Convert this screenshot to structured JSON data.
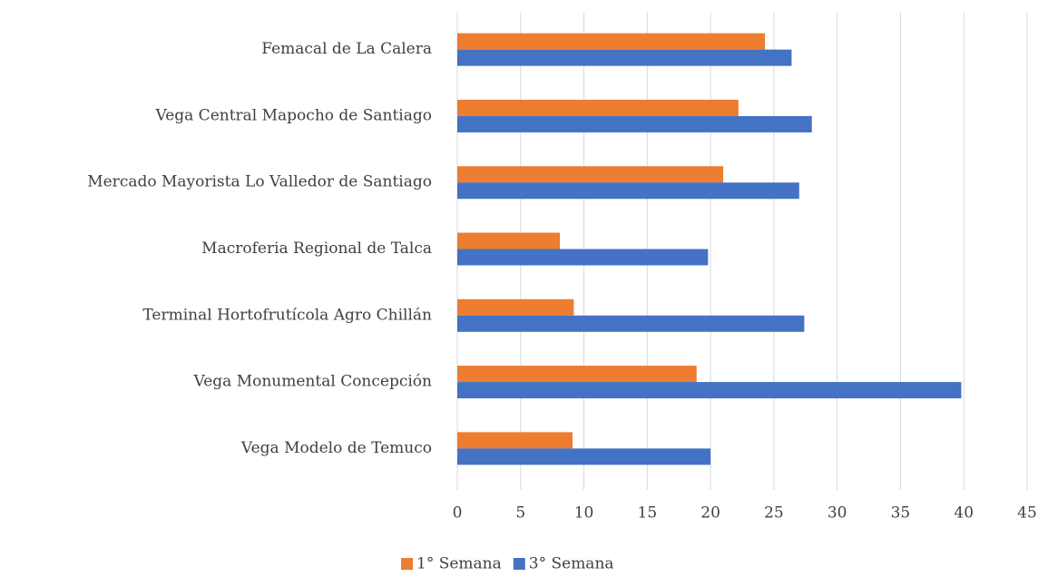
{
  "chart_data": {
    "type": "hbar",
    "categories": [
      "Femacal de La Calera",
      "Vega Central Mapocho de Santiago",
      "Mercado Mayorista Lo Valledor de Santiago",
      "Macroferia Regional de Talca",
      "Terminal Hortofrutícola Agro Chillán",
      "Vega Monumental Concepción",
      "Vega Modelo de Temuco"
    ],
    "series": [
      {
        "name": "1° Semana",
        "color": "#ed7d31",
        "values": [
          24.3,
          22.2,
          21.0,
          8.1,
          9.2,
          18.9,
          9.1
        ]
      },
      {
        "name": "3° Semana",
        "color": "#4472c4",
        "values": [
          26.4,
          28.0,
          27.0,
          19.8,
          27.4,
          39.8,
          20.0
        ]
      }
    ],
    "xlim": [
      0,
      45
    ],
    "xticks": [
      0,
      5,
      10,
      15,
      20,
      25,
      30,
      35,
      40,
      45
    ],
    "grid": true,
    "legend": "bottom"
  }
}
